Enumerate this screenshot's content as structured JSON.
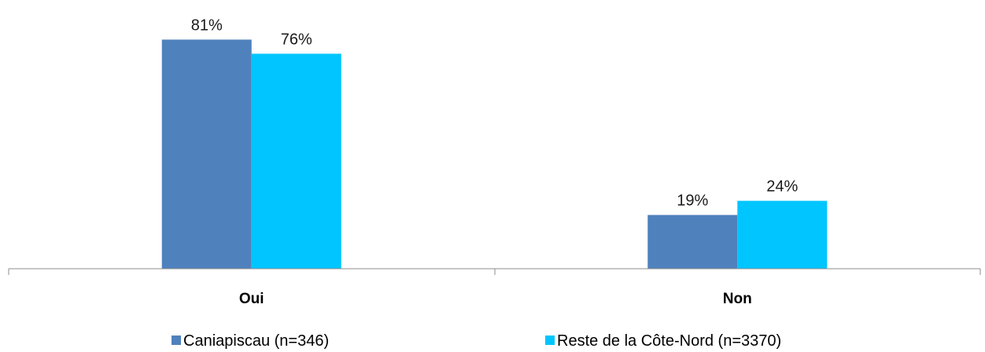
{
  "chart_data": {
    "type": "bar",
    "categories": [
      "Oui",
      "Non"
    ],
    "series": [
      {
        "name": "Caniapiscau (n=346)",
        "values": [
          81,
          19
        ],
        "labels": [
          "81%",
          "19%"
        ],
        "color": "#4f81bd"
      },
      {
        "name": "Reste de la Côte-Nord (n=3370)",
        "values": [
          76,
          24
        ],
        "labels": [
          "76%",
          "24%"
        ],
        "color": "#00c5ff"
      }
    ],
    "ylim": [
      0,
      100
    ],
    "grid": false,
    "legend": "bottom"
  }
}
